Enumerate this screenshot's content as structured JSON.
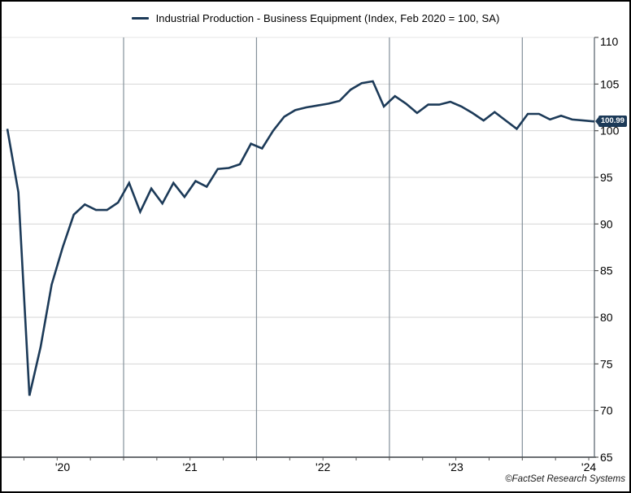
{
  "window": {
    "background": "#ffffff",
    "border_color": "#000000"
  },
  "legend": {
    "label": "Industrial Production - Business Equipment (Index, Feb 2020 = 100, SA)",
    "swatch_color": "#1c3a58"
  },
  "chart_data": {
    "type": "line",
    "title": "Industrial Production - Business Equipment (Index, Feb 2020 = 100, SA)",
    "frequency": "monthly",
    "start_month": "2020-02",
    "end_month": "2024-07",
    "values": [
      100.2,
      93.4,
      71.6,
      76.8,
      83.5,
      87.5,
      91.0,
      92.1,
      91.5,
      91.5,
      92.3,
      94.4,
      91.3,
      93.8,
      92.2,
      94.4,
      92.9,
      94.6,
      94.0,
      95.9,
      96.0,
      96.4,
      98.6,
      98.1,
      100.0,
      101.5,
      102.2,
      102.5,
      102.7,
      102.9,
      103.2,
      104.4,
      105.1,
      105.3,
      102.6,
      103.7,
      102.9,
      101.9,
      102.8,
      102.8,
      103.1,
      102.6,
      101.9,
      101.1,
      102.0,
      101.1,
      100.2,
      101.8,
      101.8,
      101.2,
      101.6,
      101.2,
      101.1,
      100.99
    ],
    "last_value": 100.99,
    "y_ticks": [
      65,
      70,
      75,
      80,
      85,
      90,
      95,
      100,
      105,
      110
    ],
    "y_range": [
      65,
      110
    ],
    "x_tick_labels": [
      "'20",
      "'21",
      "'22",
      "'23",
      "'24"
    ],
    "grid": true,
    "legend_position": "top-center",
    "line_color": "#1c3a58"
  },
  "badge": {
    "text": "100.99",
    "bg": "#1c3a58",
    "text_color": "#ffffff"
  },
  "footer": {
    "copyright": "©FactSet Research Systems"
  },
  "colors": {
    "h_grid": "#d6d6d6",
    "top_grid": "#e4e4e4",
    "v_grid": "#84909a",
    "right_axis": "#5f6a73",
    "bottom_axis": "#3a3f44",
    "tick": "#555555",
    "label": "#000000",
    "line": "#1c3a58"
  }
}
